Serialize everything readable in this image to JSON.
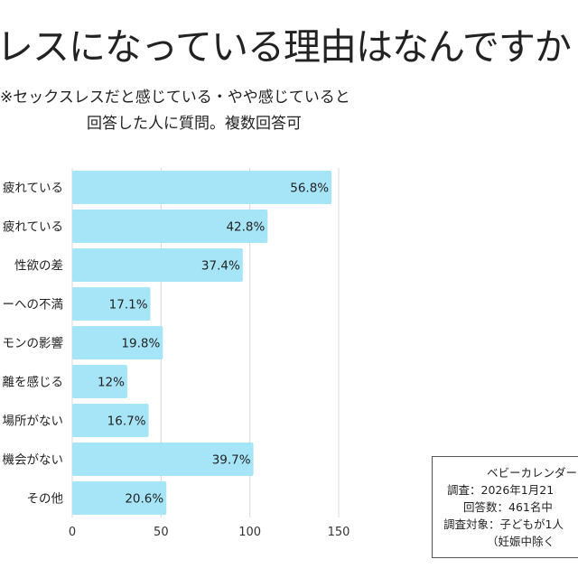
{
  "title": "レスになっている理由はなんですか",
  "subtitle": [
    "※セックスレスだと感じている・やや感じていると",
    "回答した人に質問。複数回答可"
  ],
  "chart_data": {
    "type": "bar",
    "orientation": "horizontal",
    "categories": [
      "疲れている",
      "疲れている",
      "性欲の差",
      "ーへの不満",
      "モンの影響",
      "離を感じる",
      "場所がない",
      "機会がない",
      "その他"
    ],
    "values": [
      146,
      110,
      96,
      44,
      51,
      31,
      43,
      102,
      53
    ],
    "data_labels": [
      "56.8%",
      "42.8%",
      "37.4%",
      "17.1%",
      "19.8%",
      "12%",
      "16.7%",
      "39.7%",
      "20.6%"
    ],
    "xlim": [
      0,
      150
    ],
    "xticks": [
      "0",
      "50",
      "100",
      "150"
    ],
    "grid": true,
    "bar_color": "#a6e5f7"
  },
  "legend_box": {
    "lines": [
      "ベビーカレンダー",
      "調査：2026年1月21",
      "回答数：461名中",
      "調査対象：子どもが1人",
      "（妊娠中除く"
    ]
  }
}
